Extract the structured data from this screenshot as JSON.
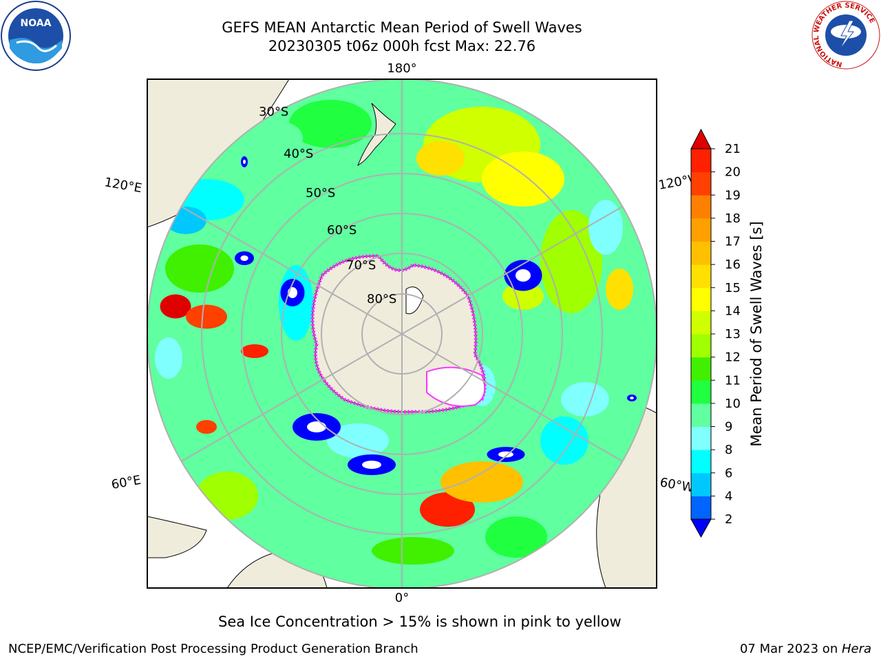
{
  "header": {
    "title_line1": "GEFS MEAN Antarctic Mean Period of Swell Waves",
    "title_line2": "20230305 t06z 000h fcst   Max: 22.76"
  },
  "logos": {
    "noaa_text": "NOAA",
    "nws_ring_text": "NATIONAL WEATHER SERVICE"
  },
  "map": {
    "projection": "south-polar-stereographic",
    "longitude_labels": {
      "top": "180°",
      "bottom": "0°",
      "left_upper": "120°E",
      "left_lower": "60°E",
      "right_upper": "120°W",
      "right_lower": "60°W"
    },
    "latitude_labels": [
      "30°S",
      "40°S",
      "50°S",
      "60°S",
      "70°S",
      "80°S"
    ]
  },
  "colorbar": {
    "label": "Mean Period of Swell Waves [s]",
    "ticks": [
      "2",
      "4",
      "6",
      "8",
      "9",
      "10",
      "11",
      "12",
      "13",
      "14",
      "15",
      "16",
      "17",
      "18",
      "19",
      "20",
      "21"
    ],
    "colors": [
      "#0000ff",
      "#0064ff",
      "#00c8ff",
      "#00ffff",
      "#80ffff",
      "#60ffa0",
      "#20ff40",
      "#40f000",
      "#a0ff00",
      "#d0ff00",
      "#ffff00",
      "#ffe000",
      "#ffc000",
      "#ffa000",
      "#ff8000",
      "#ff4000",
      "#ff2000",
      "#e00000"
    ],
    "extend": "both"
  },
  "note": "Sea Ice Concentration > 15% is shown in pink to yellow",
  "footer": {
    "left": "NCEP/EMC/Verification Post Processing Product Generation Branch",
    "right_date": "07 Mar 2023 on ",
    "right_machine": "Hera"
  }
}
